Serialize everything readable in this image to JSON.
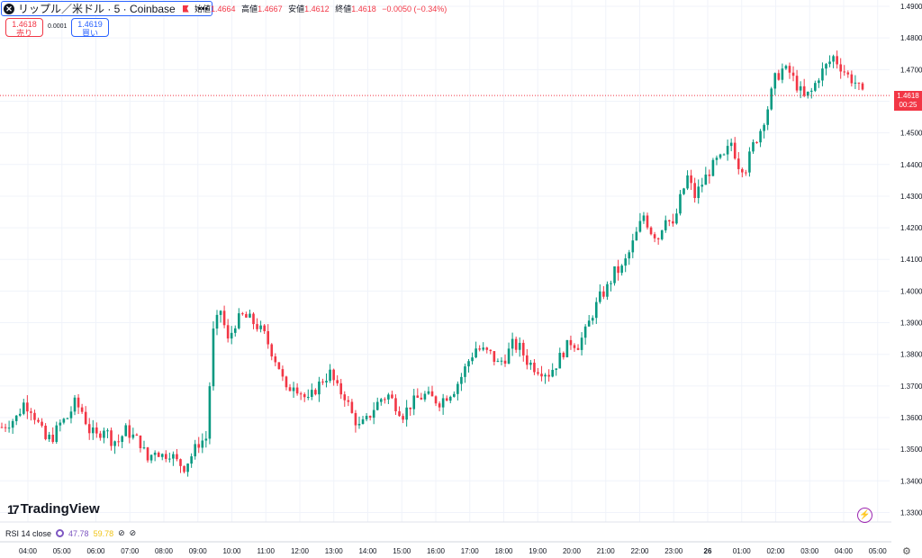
{
  "header": {
    "symbol_title": "リップル／米ドル · 5 · Coinbase",
    "ohlc": [
      {
        "label": "始値",
        "value": "1.4664"
      },
      {
        "label": "高値",
        "value": "1.4667"
      },
      {
        "label": "安値",
        "value": "1.4612"
      },
      {
        "label": "終値",
        "value": "1.4618"
      },
      {
        "label": "",
        "value": "−0.0050 (−0.34%)"
      }
    ]
  },
  "trade": {
    "sell_price": "1.4618",
    "sell_label": "売り",
    "spread": "0.0001",
    "buy_price": "1.4619",
    "buy_label": "買い"
  },
  "logo": "TradingView",
  "rsi": {
    "label": "RSI 14 close",
    "value1": "47.78",
    "value2": "59.78"
  },
  "price_tag": {
    "price": "1.4618",
    "countdown": "00:25"
  },
  "colors": {
    "up": "#089981",
    "down": "#f23645",
    "grid": "#f0f3fa",
    "axis_text": "#131722"
  },
  "chart_data": {
    "type": "candlestick",
    "title": "リップル／米ドル · 5 · Coinbase",
    "y_ticks": [
      "1.3300",
      "1.3400",
      "1.3500",
      "1.3600",
      "1.3700",
      "1.3800",
      "1.3900",
      "1.4000",
      "1.4100",
      "1.4200",
      "1.4300",
      "1.4400",
      "1.4500",
      "1.4600",
      "1.4700",
      "1.4800",
      "1.4900"
    ],
    "ylim": [
      1.327,
      1.492
    ],
    "x_ticks": [
      "04:00",
      "05:00",
      "06:00",
      "07:00",
      "08:00",
      "09:00",
      "10:00",
      "11:00",
      "12:00",
      "13:00",
      "14:00",
      "15:00",
      "16:00",
      "17:00",
      "18:00",
      "19:00",
      "20:00",
      "21:00",
      "22:00",
      "23:00",
      "26",
      "01:00",
      "02:00",
      "03:00",
      "04:00",
      "05:00"
    ],
    "current_price": 1.4618,
    "close_path": [
      [
        0,
        1.357
      ],
      [
        4,
        1.36
      ],
      [
        6,
        1.3645
      ],
      [
        8,
        1.363
      ],
      [
        10,
        1.358
      ],
      [
        12,
        1.353
      ],
      [
        14,
        1.354
      ],
      [
        16,
        1.358
      ],
      [
        18,
        1.36
      ],
      [
        20,
        1.3645
      ],
      [
        22,
        1.362
      ],
      [
        24,
        1.356
      ],
      [
        26,
        1.354
      ],
      [
        28,
        1.357
      ],
      [
        30,
        1.353
      ],
      [
        32,
        1.3525
      ],
      [
        34,
        1.356
      ],
      [
        36,
        1.354
      ],
      [
        38,
        1.352
      ],
      [
        40,
        1.3465
      ],
      [
        42,
        1.35
      ],
      [
        44,
        1.348
      ],
      [
        46,
        1.349
      ],
      [
        48,
        1.346
      ],
      [
        50,
        1.3445
      ],
      [
        52,
        1.348
      ],
      [
        54,
        1.352
      ],
      [
        56,
        1.3535
      ],
      [
        58,
        1.387
      ],
      [
        60,
        1.394
      ],
      [
        62,
        1.384
      ],
      [
        64,
        1.39
      ],
      [
        66,
        1.392
      ],
      [
        68,
        1.391
      ],
      [
        70,
        1.389
      ],
      [
        72,
        1.386
      ],
      [
        74,
        1.381
      ],
      [
        76,
        1.376
      ],
      [
        78,
        1.368
      ],
      [
        80,
        1.371
      ],
      [
        82,
        1.368
      ],
      [
        84,
        1.365
      ],
      [
        86,
        1.369
      ],
      [
        88,
        1.372
      ],
      [
        90,
        1.374
      ],
      [
        92,
        1.369
      ],
      [
        94,
        1.367
      ],
      [
        96,
        1.361
      ],
      [
        98,
        1.357
      ],
      [
        100,
        1.359
      ],
      [
        102,
        1.363
      ],
      [
        104,
        1.366
      ],
      [
        106,
        1.367
      ],
      [
        108,
        1.364
      ],
      [
        110,
        1.361
      ],
      [
        112,
        1.364
      ],
      [
        114,
        1.366
      ],
      [
        116,
        1.367
      ],
      [
        118,
        1.366
      ],
      [
        120,
        1.365
      ],
      [
        122,
        1.367
      ],
      [
        124,
        1.369
      ],
      [
        126,
        1.373
      ],
      [
        128,
        1.378
      ],
      [
        130,
        1.382
      ],
      [
        132,
        1.381
      ],
      [
        134,
        1.38
      ],
      [
        136,
        1.377
      ],
      [
        138,
        1.379
      ],
      [
        140,
        1.383
      ],
      [
        142,
        1.382
      ],
      [
        144,
        1.378
      ],
      [
        146,
        1.376
      ],
      [
        148,
        1.375
      ],
      [
        150,
        1.374
      ],
      [
        152,
        1.377
      ],
      [
        154,
        1.381
      ],
      [
        156,
        1.384
      ],
      [
        158,
        1.383
      ],
      [
        160,
        1.387
      ],
      [
        162,
        1.393
      ],
      [
        164,
        1.398
      ],
      [
        166,
        1.401
      ],
      [
        168,
        1.406
      ],
      [
        170,
        1.407
      ],
      [
        172,
        1.412
      ],
      [
        174,
        1.418
      ],
      [
        176,
        1.424
      ],
      [
        178,
        1.419
      ],
      [
        180,
        1.417
      ],
      [
        182,
        1.424
      ],
      [
        184,
        1.42
      ],
      [
        186,
        1.429
      ],
      [
        188,
        1.436
      ],
      [
        190,
        1.43
      ],
      [
        192,
        1.434
      ],
      [
        194,
        1.438
      ],
      [
        196,
        1.441
      ],
      [
        198,
        1.442
      ],
      [
        200,
        1.447
      ],
      [
        202,
        1.44
      ],
      [
        204,
        1.439
      ],
      [
        206,
        1.446
      ],
      [
        208,
        1.451
      ],
      [
        210,
        1.458
      ],
      [
        212,
        1.467
      ],
      [
        214,
        1.47
      ],
      [
        216,
        1.469
      ],
      [
        218,
        1.465
      ],
      [
        220,
        1.461
      ],
      [
        222,
        1.463
      ],
      [
        224,
        1.468
      ],
      [
        226,
        1.471
      ],
      [
        228,
        1.474
      ],
      [
        230,
        1.471
      ],
      [
        232,
        1.468
      ],
      [
        234,
        1.466
      ],
      [
        236,
        1.4618
      ]
    ]
  }
}
